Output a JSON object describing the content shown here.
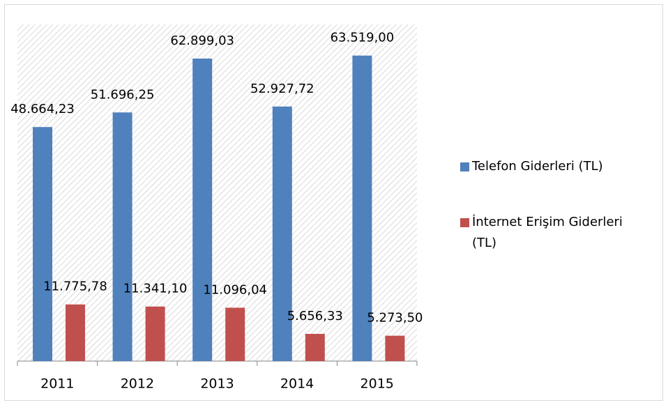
{
  "chart_data": {
    "type": "bar",
    "categories": [
      "2011",
      "2012",
      "2013",
      "2014",
      "2015"
    ],
    "series": [
      {
        "name": "Telefon Giderleri (TL)",
        "color": "#4f81bd",
        "values": [
          48664.23,
          51696.25,
          62899.03,
          52927.72,
          63519.0
        ],
        "value_labels": [
          "48.664,23",
          "51.696,25",
          "62.899,03",
          "52.927,72",
          "63.519,00"
        ]
      },
      {
        "name": "İnternet Erişim Giderleri (TL)",
        "color": "#c0504d",
        "values": [
          11775.78,
          11341.1,
          11096.04,
          5656.33,
          5273.5
        ],
        "value_labels": [
          "11.775,78",
          "11.341,10",
          "11.096,04",
          "5.656,33",
          "5.273,50"
        ]
      }
    ],
    "ylim": [
      0,
      70000
    ],
    "legend": "right"
  }
}
